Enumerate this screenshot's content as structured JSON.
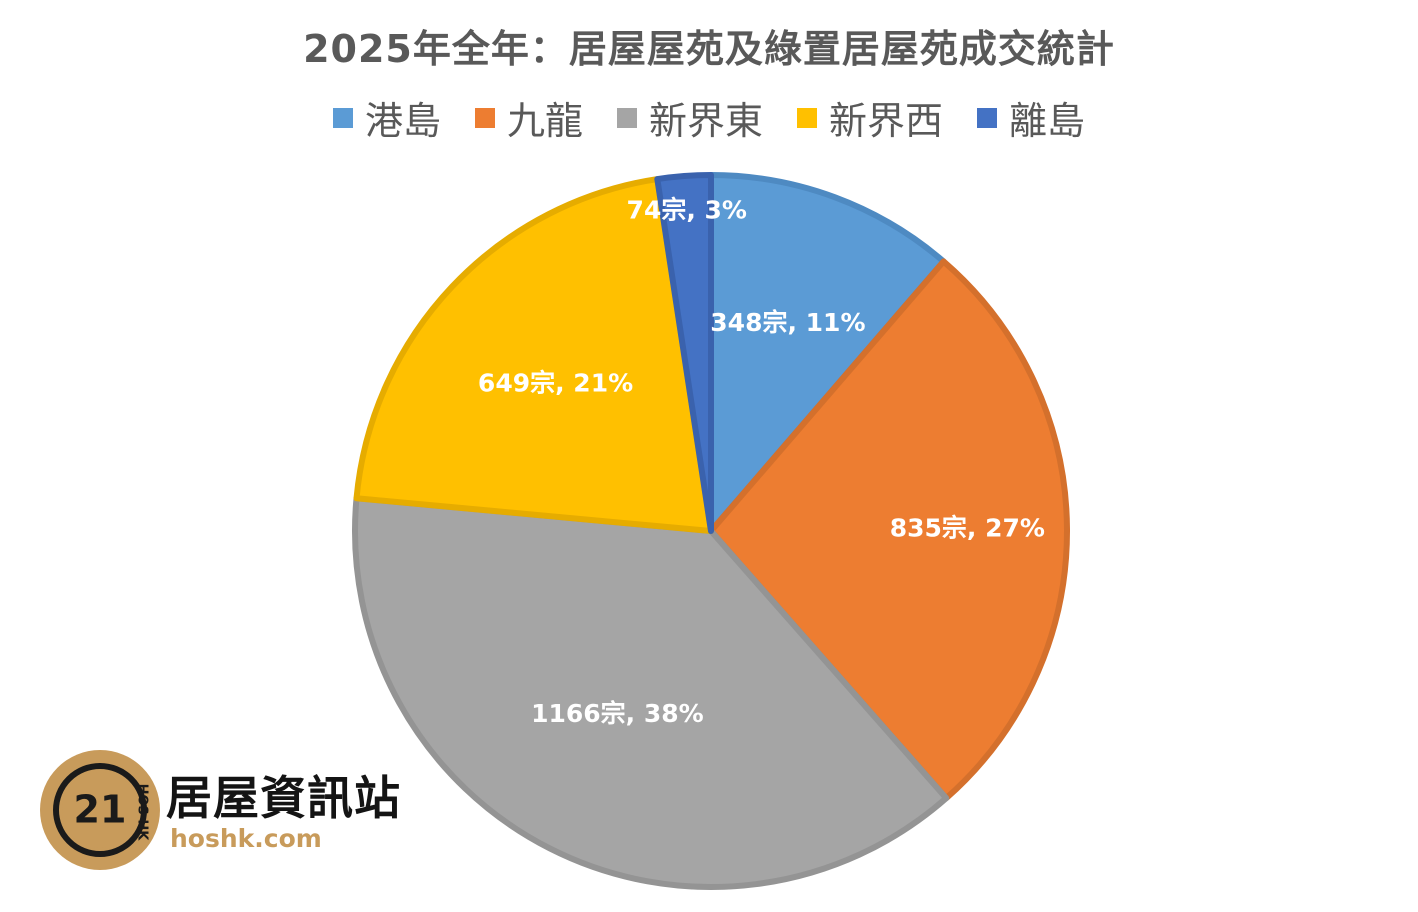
{
  "chart_data": {
    "type": "pie",
    "title": "2025年全年：居屋屋苑及綠置居屋苑成交統計",
    "legend_position": "top",
    "categories": [
      "港島",
      "九龍",
      "新界東",
      "新界西",
      "離島"
    ],
    "values": [
      348,
      835,
      1166,
      649,
      74
    ],
    "percent": [
      11,
      27,
      38,
      21,
      3
    ],
    "labels": [
      "348宗, 11%",
      "835宗, 27%",
      "1166宗, 38%",
      "649宗, 21%",
      "74宗, 3%"
    ],
    "colors": [
      "#5b9bd5",
      "#ed7d31",
      "#a5a5a5",
      "#ffc000",
      "#4472c4"
    ],
    "edge_colors": [
      "#4e8ac2",
      "#d4702c",
      "#949494",
      "#e6ac00",
      "#3a62ad"
    ]
  },
  "logo": {
    "badge_number": "21",
    "badge_text": "HOS HK",
    "name": "居屋資訊站",
    "url": "hoshk.com"
  }
}
